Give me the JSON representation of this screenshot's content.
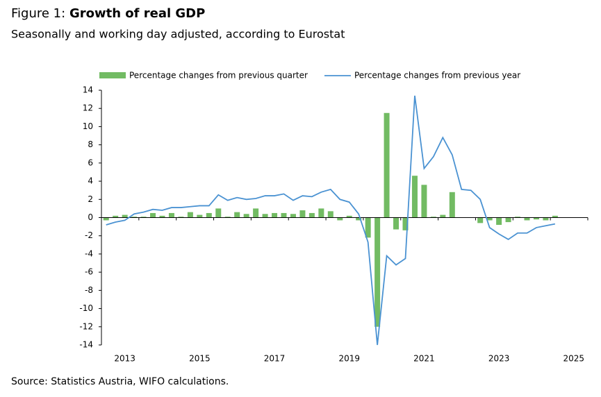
{
  "chart_data": {
    "type": "bar_line",
    "title_prefix": "Figure 1:",
    "title": "Growth of real GDP",
    "subtitle": "Seasonally and working day adjusted, according to Eurostat",
    "source": "Source: Statistics Austria, WIFO calculations.",
    "categories": [
      null,
      null,
      "2013",
      null,
      null,
      null,
      null,
      null,
      null,
      null,
      "2015",
      null,
      null,
      null,
      null,
      null,
      null,
      null,
      "2017",
      null,
      null,
      null,
      null,
      null,
      null,
      null,
      "2019",
      null,
      null,
      null,
      null,
      null,
      null,
      null,
      "2021",
      null,
      null,
      null,
      null,
      null,
      null,
      null,
      "2023",
      null,
      null,
      null,
      null,
      null,
      null,
      null,
      "2025",
      null
    ],
    "series": [
      {
        "name": "Percentage changes from previous quarter",
        "type": "bar",
        "color": "#72bb63",
        "values": [
          -0.3,
          0.2,
          0.3,
          0.1,
          0.1,
          0.5,
          0.2,
          0.5,
          0.1,
          0.6,
          0.3,
          0.5,
          1.0,
          0.1,
          0.6,
          0.4,
          1.0,
          0.4,
          0.5,
          0.5,
          0.4,
          0.8,
          0.5,
          1.0,
          0.7,
          -0.3,
          0.2,
          -0.3,
          -2.2,
          -12.0,
          11.5,
          -1.3,
          -1.4,
          4.6,
          3.6,
          0.1,
          0.3,
          2.8,
          0.0,
          0.0,
          -0.6,
          -0.3,
          -0.8,
          -0.5,
          0.1,
          -0.3,
          -0.2,
          -0.3,
          0.2,
          null,
          null,
          null
        ]
      },
      {
        "name": "Percentage changes from previous year",
        "type": "line",
        "color": "#4a92d2",
        "values": [
          -0.8,
          -0.5,
          -0.3,
          0.4,
          0.6,
          0.9,
          0.8,
          1.1,
          1.1,
          1.2,
          1.3,
          1.3,
          2.5,
          1.9,
          2.2,
          2.0,
          2.1,
          2.4,
          2.4,
          2.6,
          1.9,
          2.4,
          2.3,
          2.8,
          3.1,
          2.0,
          1.7,
          0.4,
          -2.7,
          -14.0,
          -4.2,
          -5.2,
          -4.5,
          13.4,
          5.4,
          6.7,
          8.8,
          6.9,
          3.1,
          3.0,
          2.0,
          -1.1,
          -1.8,
          -2.4,
          -1.7,
          -1.7,
          -1.1,
          -0.9,
          -0.7,
          null,
          null,
          null
        ]
      }
    ],
    "ylim": [
      -14,
      14
    ],
    "yticks": [
      -14,
      -12,
      -10,
      -8,
      -6,
      -4,
      -2,
      0,
      2,
      4,
      6,
      8,
      10,
      12,
      14
    ],
    "legend": "top"
  }
}
